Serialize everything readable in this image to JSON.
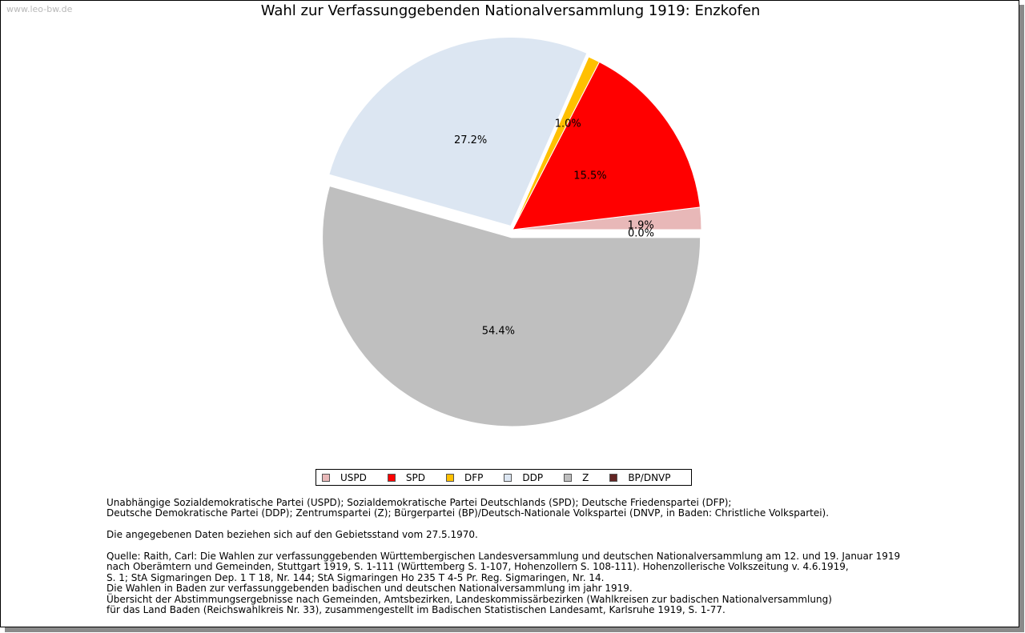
{
  "watermark": "www.leo-bw.de",
  "chart_data": {
    "type": "pie",
    "title": "Wahl zur Verfassunggebenden Nationalversammlung 1919: Enzkofen",
    "slices": [
      {
        "name": "USPD",
        "value": 1.9,
        "label": "1.9%",
        "color": "#e8b8b8"
      },
      {
        "name": "SPD",
        "value": 15.5,
        "label": "15.5%",
        "color": "#ff0000"
      },
      {
        "name": "DFP",
        "value": 1.0,
        "label": "1.0%",
        "color": "#ffc000"
      },
      {
        "name": "DDP",
        "value": 27.2,
        "label": "27.2%",
        "color": "#dce6f2"
      },
      {
        "name": "Z",
        "value": 54.4,
        "label": "54.4%",
        "color": "#bfbfbf"
      },
      {
        "name": "BP/DNVP",
        "value": 0.0,
        "label": "0.0%",
        "color": "#632523"
      }
    ],
    "legend_position": "bottom"
  },
  "notes": {
    "parties_1": "Unabhängige Sozialdemokratische Partei (USPD); Sozialdemokratische Partei Deutschlands (SPD); Deutsche Friedenspartei (DFP);",
    "parties_2": "Deutsche Demokratische Partei (DDP); Zentrumspartei (Z); Bürgerpartei (BP)/Deutsch-Nationale Volkspartei (DNVP, in Baden: Christliche Volkspartei).",
    "territory": "Die angegebenen Daten beziehen sich auf den Gebietsstand vom 27.5.1970.",
    "source_1": "Quelle: Raith, Carl: Die Wahlen zur verfassunggebenden Württembergischen Landesversammlung und deutschen Nationalversammlung am 12. und 19. Januar 1919",
    "source_2": "nach Oberämtern und Gemeinden, Stuttgart 1919, S. 1-111 (Württemberg S. 1-107, Hohenzollern S. 108-111). Hohenzollerische Volkszeitung v. 4.6.1919,",
    "source_3": "S. 1; StA Sigmaringen Dep. 1 T 18, Nr. 144; StA Sigmaringen Ho 235 T 4-5 Pr. Reg. Sigmaringen, Nr. 14.",
    "source_4": "Die Wahlen in Baden zur verfassunggebenden badischen und deutschen Nationalversammlung im jahr 1919.",
    "source_5": "Übersicht der Abstimmungsergebnisse nach Gemeinden, Amtsbezirken, Landeskommissärbezirken (Wahlkreisen zur badischen Nationalversammlung)",
    "source_6": "für das Land Baden (Reichswahlkreis Nr. 33), zusammengestellt im Badischen Statistischen Landesamt, Karlsruhe 1919, S. 1-77."
  }
}
